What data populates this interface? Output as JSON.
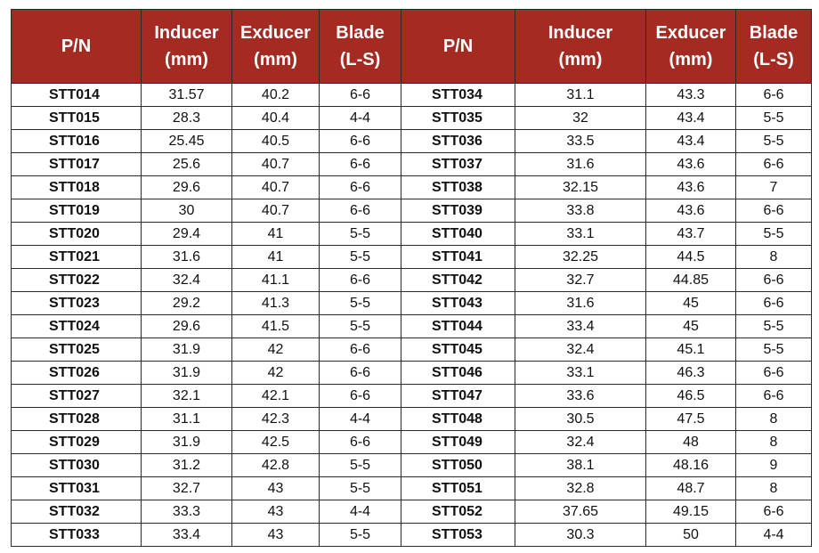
{
  "header_color": "#a52a22",
  "headers": {
    "pn": "P/N",
    "inducer": [
      "Inducer",
      "(mm)"
    ],
    "exducer": [
      "Exducer",
      "(mm)"
    ],
    "blade": [
      "Blade",
      "(L-S)"
    ]
  },
  "left_rows": [
    {
      "pn": "STT014",
      "inducer": "31.57",
      "exducer": "40.2",
      "blade": "6-6"
    },
    {
      "pn": "STT015",
      "inducer": "28.3",
      "exducer": "40.4",
      "blade": "4-4"
    },
    {
      "pn": "STT016",
      "inducer": "25.45",
      "exducer": "40.5",
      "blade": "6-6"
    },
    {
      "pn": "STT017",
      "inducer": "25.6",
      "exducer": "40.7",
      "blade": "6-6"
    },
    {
      "pn": "STT018",
      "inducer": "29.6",
      "exducer": "40.7",
      "blade": "6-6"
    },
    {
      "pn": "STT019",
      "inducer": "30",
      "exducer": "40.7",
      "blade": "6-6"
    },
    {
      "pn": "STT020",
      "inducer": "29.4",
      "exducer": "41",
      "blade": "5-5"
    },
    {
      "pn": "STT021",
      "inducer": "31.6",
      "exducer": "41",
      "blade": "5-5"
    },
    {
      "pn": "STT022",
      "inducer": "32.4",
      "exducer": "41.1",
      "blade": "6-6"
    },
    {
      "pn": "STT023",
      "inducer": "29.2",
      "exducer": "41.3",
      "blade": "5-5"
    },
    {
      "pn": "STT024",
      "inducer": "29.6",
      "exducer": "41.5",
      "blade": "5-5"
    },
    {
      "pn": "STT025",
      "inducer": "31.9",
      "exducer": "42",
      "blade": "6-6"
    },
    {
      "pn": "STT026",
      "inducer": "31.9",
      "exducer": "42",
      "blade": "6-6"
    },
    {
      "pn": "STT027",
      "inducer": "32.1",
      "exducer": "42.1",
      "blade": "6-6"
    },
    {
      "pn": "STT028",
      "inducer": "31.1",
      "exducer": "42.3",
      "blade": "4-4"
    },
    {
      "pn": "STT029",
      "inducer": "31.9",
      "exducer": "42.5",
      "blade": "6-6"
    },
    {
      "pn": "STT030",
      "inducer": "31.2",
      "exducer": "42.8",
      "blade": "5-5"
    },
    {
      "pn": "STT031",
      "inducer": "32.7",
      "exducer": "43",
      "blade": "5-5"
    },
    {
      "pn": "STT032",
      "inducer": "33.3",
      "exducer": "43",
      "blade": "4-4"
    },
    {
      "pn": "STT033",
      "inducer": "33.4",
      "exducer": "43",
      "blade": "5-5"
    }
  ],
  "right_rows": [
    {
      "pn": "STT034",
      "inducer": "31.1",
      "exducer": "43.3",
      "blade": "6-6"
    },
    {
      "pn": "STT035",
      "inducer": "32",
      "exducer": "43.4",
      "blade": "5-5"
    },
    {
      "pn": "STT036",
      "inducer": "33.5",
      "exducer": "43.4",
      "blade": "5-5"
    },
    {
      "pn": "STT037",
      "inducer": "31.6",
      "exducer": "43.6",
      "blade": "6-6"
    },
    {
      "pn": "STT038",
      "inducer": "32.15",
      "exducer": "43.6",
      "blade": "7"
    },
    {
      "pn": "STT039",
      "inducer": "33.8",
      "exducer": "43.6",
      "blade": "6-6"
    },
    {
      "pn": "STT040",
      "inducer": "33.1",
      "exducer": "43.7",
      "blade": "5-5"
    },
    {
      "pn": "STT041",
      "inducer": "32.25",
      "exducer": "44.5",
      "blade": "8"
    },
    {
      "pn": "STT042",
      "inducer": "32.7",
      "exducer": "44.85",
      "blade": "6-6"
    },
    {
      "pn": "STT043",
      "inducer": "31.6",
      "exducer": "45",
      "blade": "6-6"
    },
    {
      "pn": "STT044",
      "inducer": "33.4",
      "exducer": "45",
      "blade": "5-5"
    },
    {
      "pn": "STT045",
      "inducer": "32.4",
      "exducer": "45.1",
      "blade": "5-5"
    },
    {
      "pn": "STT046",
      "inducer": "33.1",
      "exducer": "46.3",
      "blade": "6-6"
    },
    {
      "pn": "STT047",
      "inducer": "33.6",
      "exducer": "46.5",
      "blade": "6-6"
    },
    {
      "pn": "STT048",
      "inducer": "30.5",
      "exducer": "47.5",
      "blade": "8"
    },
    {
      "pn": "STT049",
      "inducer": "32.4",
      "exducer": "48",
      "blade": "8"
    },
    {
      "pn": "STT050",
      "inducer": "38.1",
      "exducer": "48.16",
      "blade": "9"
    },
    {
      "pn": "STT051",
      "inducer": "32.8",
      "exducer": "48.7",
      "blade": "8"
    },
    {
      "pn": "STT052",
      "inducer": "37.65",
      "exducer": "49.15",
      "blade": "6-6"
    },
    {
      "pn": "STT053",
      "inducer": "30.3",
      "exducer": "50",
      "blade": "4-4"
    }
  ]
}
